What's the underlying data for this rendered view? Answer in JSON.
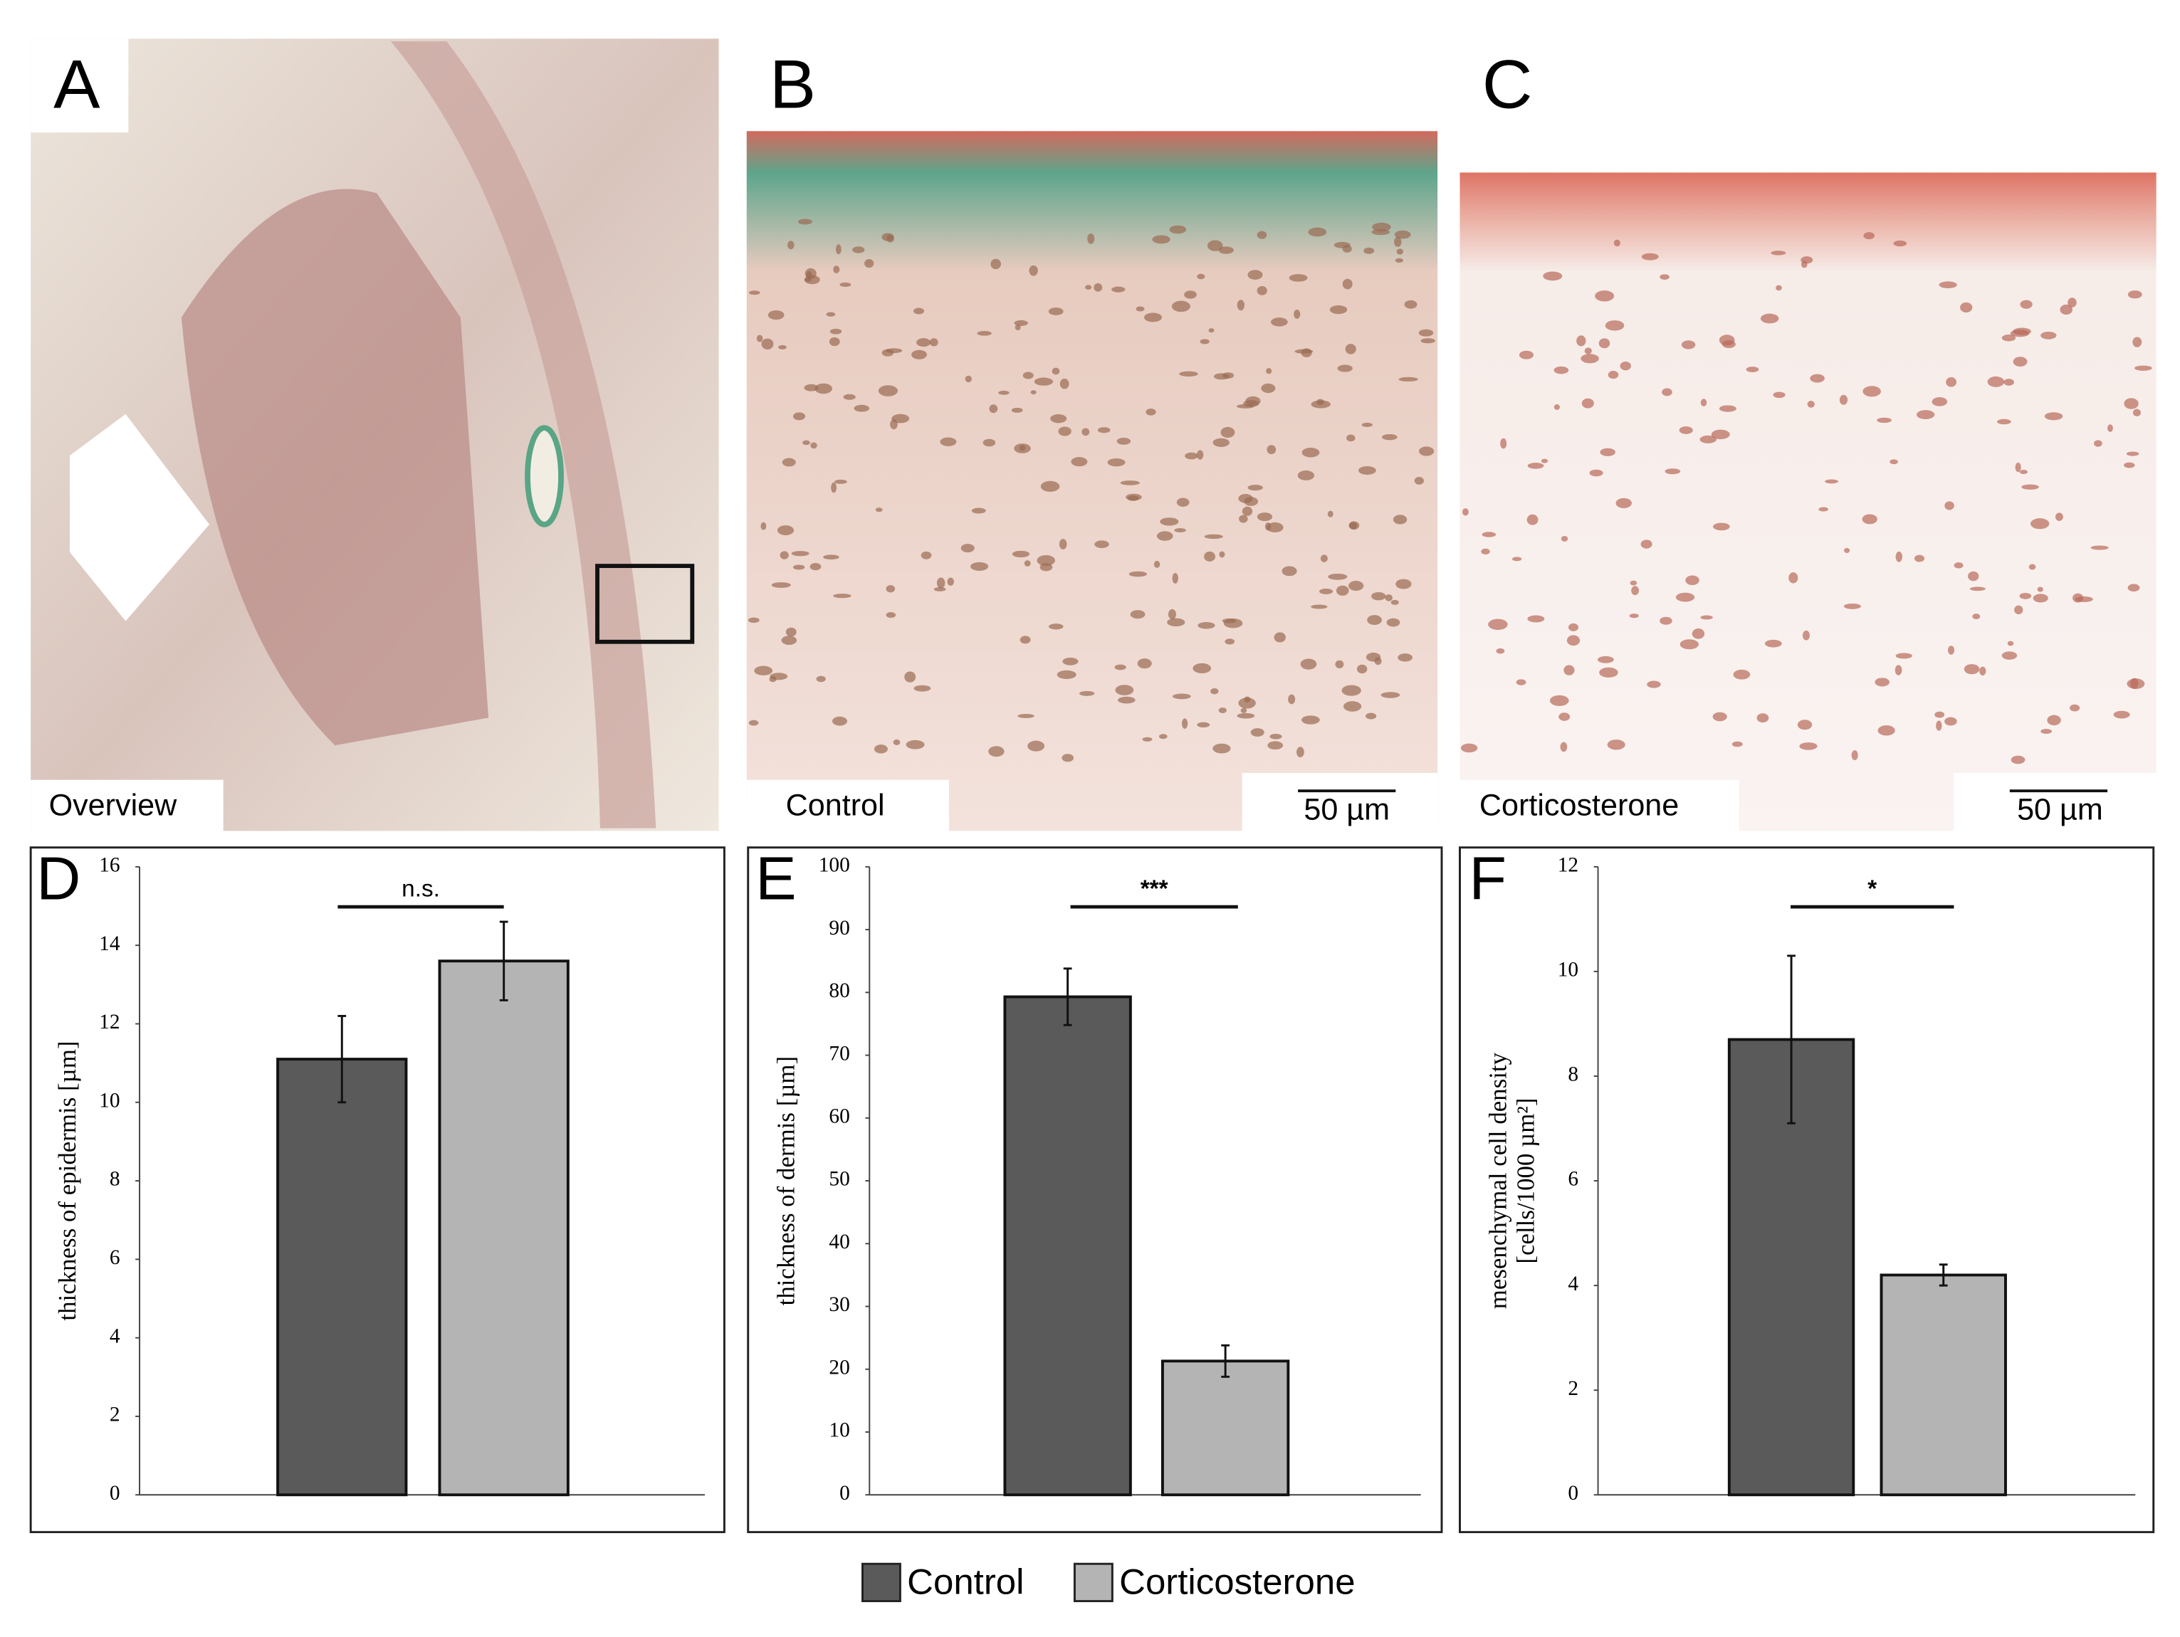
{
  "images": [
    {
      "letter": "A",
      "caption": "Overview"
    },
    {
      "letter": "B",
      "caption": "Control",
      "scale_bar": "50 µm"
    },
    {
      "letter": "C",
      "caption": "Corticosterone",
      "scale_bar": "50 µm"
    }
  ],
  "legend": [
    {
      "name": "Control",
      "color": "#5a5a5a"
    },
    {
      "name": "Corticosterone",
      "color": "#b4b4b4"
    }
  ],
  "chart_data": [
    {
      "type": "bar",
      "letter": "D",
      "ylabel": [
        "thickness of epidermis [µm]"
      ],
      "values": [
        11.1,
        13.6
      ],
      "errors": [
        1.1,
        1.0
      ],
      "ylim": [
        0,
        16
      ],
      "yticks": [
        0,
        2,
        4,
        6,
        8,
        10,
        12,
        14,
        16
      ],
      "annotation": "n.s."
    },
    {
      "type": "bar",
      "letter": "E",
      "ylabel": [
        "thickness of dermis [µm]"
      ],
      "values": [
        79.3,
        21.3
      ],
      "errors": [
        4.5,
        2.5
      ],
      "ylim": [
        0,
        100
      ],
      "yticks": [
        0,
        10,
        20,
        30,
        40,
        50,
        60,
        70,
        80,
        90,
        100
      ],
      "annotation": "***"
    },
    {
      "type": "bar",
      "letter": "F",
      "ylabel": [
        "mesenchymal cell density",
        "[cells/1000 µm²]"
      ],
      "values": [
        8.7,
        4.2
      ],
      "errors": [
        1.6,
        0.2
      ],
      "ylim": [
        0,
        12
      ],
      "yticks": [
        0,
        2,
        4,
        6,
        8,
        10,
        12
      ],
      "annotation": "*"
    }
  ]
}
